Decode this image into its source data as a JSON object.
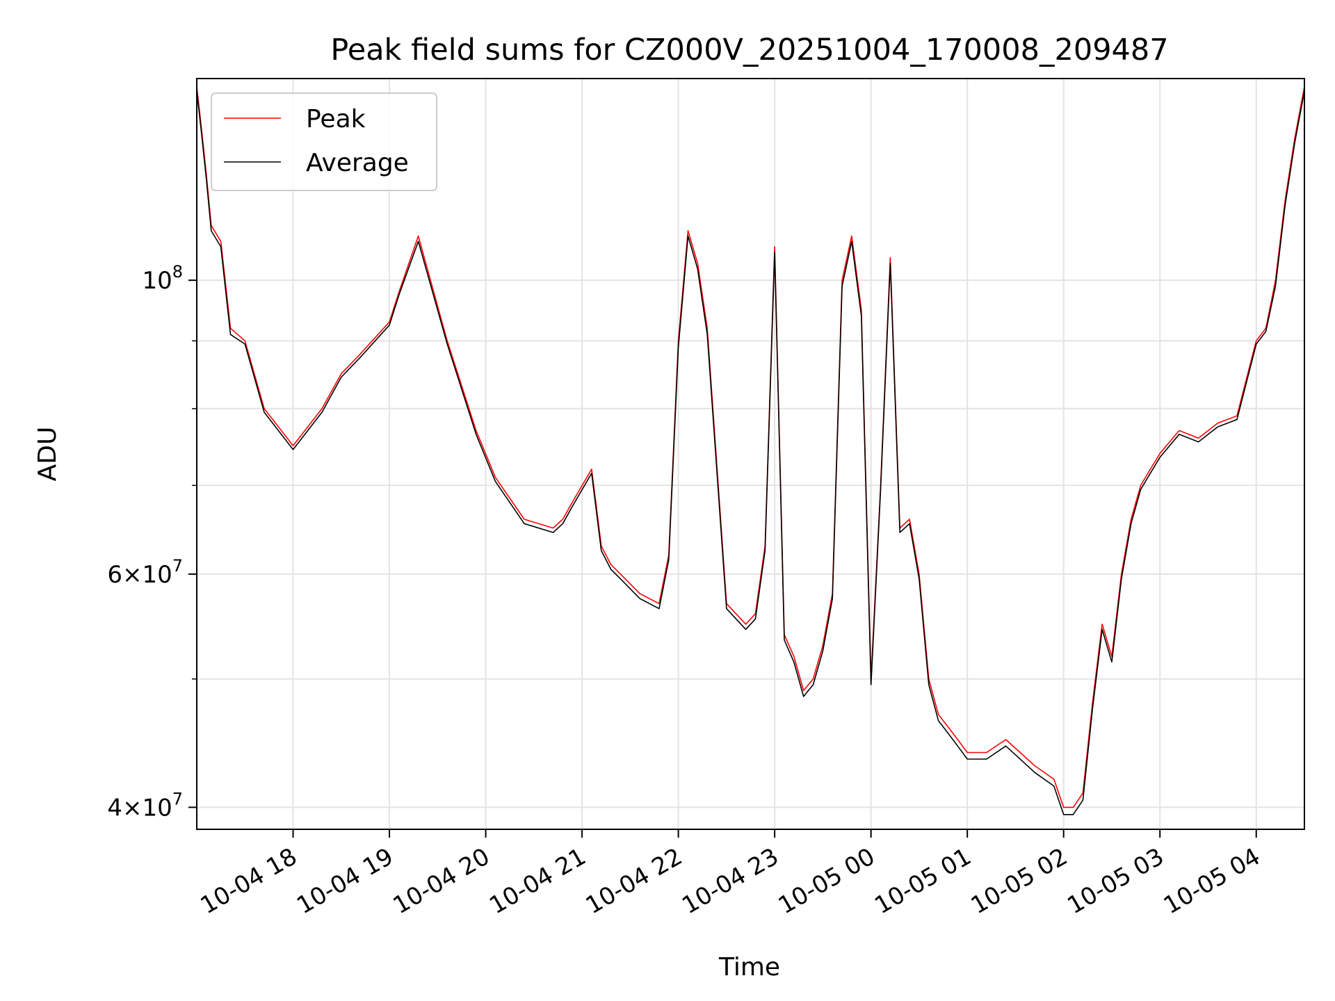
{
  "chart_data": {
    "type": "line",
    "title": "Peak field sums for CZ000V_20251004_170008_209487",
    "xlabel": "Time",
    "ylabel": "ADU",
    "yscale": "log",
    "ylim": [
      38500000,
      142000000
    ],
    "xlim_hours": [
      0,
      11.5
    ],
    "x_unit": "hours since 10-04 17:00",
    "grid": true,
    "legend_position": "upper-left",
    "colors": {
      "peak": "#ff0000",
      "average": "#000000",
      "grid": "#e3e3e3"
    },
    "x_ticks": [
      {
        "label": "10-04 18",
        "hour": 1
      },
      {
        "label": "10-04 19",
        "hour": 2
      },
      {
        "label": "10-04 20",
        "hour": 3
      },
      {
        "label": "10-04 21",
        "hour": 4
      },
      {
        "label": "10-04 22",
        "hour": 5
      },
      {
        "label": "10-04 23",
        "hour": 6
      },
      {
        "label": "10-05 00",
        "hour": 7
      },
      {
        "label": "10-05 01",
        "hour": 8
      },
      {
        "label": "10-05 02",
        "hour": 9
      },
      {
        "label": "10-05 03",
        "hour": 10
      },
      {
        "label": "10-05 04",
        "hour": 11
      }
    ],
    "y_major_ticks": [
      {
        "value": 100000000,
        "mantissa": "",
        "exponent": "8"
      },
      {
        "value": 60000000,
        "mantissa": "6",
        "exponent": "7"
      },
      {
        "value": 40000000,
        "mantissa": "4",
        "exponent": "7"
      }
    ],
    "y_minor_gridlines": [
      50000000,
      70000000,
      80000000,
      90000000
    ],
    "series": [
      {
        "name": "Peak",
        "color": "#ff0000",
        "hours": [
          0,
          0.05,
          0.1,
          0.15,
          0.25,
          0.35,
          0.5,
          0.7,
          1.0,
          1.3,
          1.5,
          1.7,
          2.0,
          2.1,
          2.3,
          2.6,
          2.9,
          3.1,
          3.4,
          3.7,
          3.8,
          3.9,
          4.1,
          4.2,
          4.3,
          4.4,
          4.6,
          4.8,
          4.9,
          5.0,
          5.1,
          5.2,
          5.3,
          5.5,
          5.7,
          5.8,
          5.9,
          6.0,
          6.1,
          6.2,
          6.3,
          6.4,
          6.5,
          6.6,
          6.7,
          6.8,
          6.9,
          7.0,
          7.1,
          7.2,
          7.3,
          7.4,
          7.5,
          7.6,
          7.7,
          7.8,
          7.9,
          8.0,
          8.2,
          8.4,
          8.7,
          8.9,
          9.0,
          9.1,
          9.2,
          9.3,
          9.4,
          9.5,
          9.6,
          9.7,
          9.8,
          9.9,
          10.0,
          10.2,
          10.4,
          10.6,
          10.8,
          11.0,
          11.1,
          11.2,
          11.3,
          11.4,
          11.5
        ],
        "values": [
          140000000,
          130000000,
          120000000,
          110000000,
          107000000,
          92000000,
          90000000,
          80000000,
          75000000,
          80000000,
          85000000,
          88000000,
          93000000,
          98000000,
          108000000,
          90000000,
          77000000,
          71000000,
          66000000,
          65000000,
          66000000,
          68000000,
          72000000,
          63000000,
          61000000,
          60000000,
          58000000,
          57000000,
          62000000,
          90000000,
          109000000,
          103000000,
          92000000,
          57000000,
          55000000,
          56000000,
          63000000,
          106000000,
          54000000,
          52000000,
          49000000,
          50000000,
          53000000,
          58000000,
          100000000,
          108000000,
          95000000,
          50000000,
          70000000,
          104000000,
          65000000,
          66000000,
          60000000,
          50000000,
          47000000,
          46000000,
          45000000,
          44000000,
          44000000,
          45000000,
          43000000,
          42000000,
          40000000,
          40000000,
          41000000,
          48000000,
          55000000,
          52000000,
          60000000,
          66000000,
          70000000,
          72000000,
          74000000,
          77000000,
          76000000,
          78000000,
          79000000,
          90000000,
          92000000,
          100000000,
          115000000,
          128000000,
          140000000
        ]
      },
      {
        "name": "Average",
        "color": "#000000",
        "hours": [
          0,
          0.05,
          0.1,
          0.15,
          0.25,
          0.35,
          0.5,
          0.7,
          1.0,
          1.3,
          1.5,
          1.7,
          2.0,
          2.1,
          2.3,
          2.6,
          2.9,
          3.1,
          3.4,
          3.7,
          3.8,
          3.9,
          4.1,
          4.2,
          4.3,
          4.4,
          4.6,
          4.8,
          4.9,
          5.0,
          5.1,
          5.2,
          5.3,
          5.5,
          5.7,
          5.8,
          5.9,
          6.0,
          6.1,
          6.2,
          6.3,
          6.4,
          6.5,
          6.6,
          6.7,
          6.8,
          6.9,
          7.0,
          7.1,
          7.2,
          7.3,
          7.4,
          7.5,
          7.6,
          7.7,
          7.8,
          7.9,
          8.0,
          8.2,
          8.4,
          8.7,
          8.9,
          9.0,
          9.1,
          9.2,
          9.3,
          9.4,
          9.5,
          9.6,
          9.7,
          9.8,
          9.9,
          10.0,
          10.2,
          10.4,
          10.6,
          10.8,
          11.0,
          11.1,
          11.2,
          11.3,
          11.4,
          11.5
        ],
        "values": [
          139000000,
          129000000,
          119000000,
          109000000,
          106000000,
          91000000,
          89500000,
          79500000,
          74500000,
          79500000,
          84500000,
          87500000,
          92500000,
          97500000,
          107000000,
          89500000,
          76500000,
          70500000,
          65500000,
          64500000,
          65500000,
          67500000,
          71500000,
          62500000,
          60500000,
          59500000,
          57500000,
          56500000,
          61500000,
          89000000,
          108000000,
          102000000,
          91000000,
          56500000,
          54500000,
          55500000,
          62500000,
          105000000,
          53500000,
          51500000,
          48500000,
          49500000,
          52500000,
          57500000,
          99000000,
          107000000,
          94000000,
          49500000,
          69500000,
          103000000,
          64500000,
          65500000,
          59500000,
          49500000,
          46500000,
          45500000,
          44500000,
          43500000,
          43500000,
          44500000,
          42500000,
          41500000,
          39500000,
          39500000,
          40500000,
          47500000,
          54500000,
          51500000,
          59500000,
          65500000,
          69500000,
          71500000,
          73500000,
          76500000,
          75500000,
          77500000,
          78500000,
          89500000,
          91500000,
          99000000,
          114000000,
          127000000,
          139000000
        ]
      }
    ]
  }
}
